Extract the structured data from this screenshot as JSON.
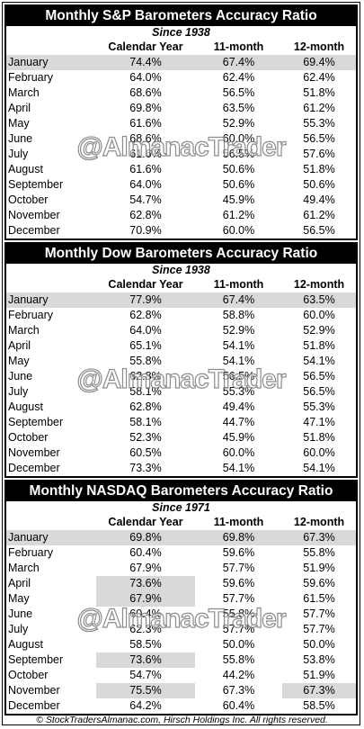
{
  "watermark": "@AlmanacTrader",
  "headers": {
    "month": "",
    "calendar_year": "Calendar Year",
    "eleven_month": "11-month",
    "twelve_month": "12-month"
  },
  "tables": [
    {
      "title": "Monthly S&P Barometers Accuracy Ratio",
      "subtitle": "Since 1938",
      "rows": [
        {
          "month": "January",
          "cal": "74.4%",
          "m11": "67.4%",
          "m12": "69.4%"
        },
        {
          "month": "February",
          "cal": "64.0%",
          "m11": "62.4%",
          "m12": "62.4%"
        },
        {
          "month": "March",
          "cal": "68.6%",
          "m11": "56.5%",
          "m12": "51.8%"
        },
        {
          "month": "April",
          "cal": "69.8%",
          "m11": "63.5%",
          "m12": "61.2%"
        },
        {
          "month": "May",
          "cal": "61.6%",
          "m11": "52.9%",
          "m12": "55.3%"
        },
        {
          "month": "June",
          "cal": "68.6%",
          "m11": "60.0%",
          "m12": "56.5%"
        },
        {
          "month": "July",
          "cal": "61.6%",
          "m11": "56.5%",
          "m12": "57.6%"
        },
        {
          "month": "August",
          "cal": "61.6%",
          "m11": "50.6%",
          "m12": "51.8%"
        },
        {
          "month": "September",
          "cal": "64.0%",
          "m11": "50.6%",
          "m12": "50.6%"
        },
        {
          "month": "October",
          "cal": "54.7%",
          "m11": "45.9%",
          "m12": "49.4%"
        },
        {
          "month": "November",
          "cal": "62.8%",
          "m11": "61.2%",
          "m12": "61.2%"
        },
        {
          "month": "December",
          "cal": "70.9%",
          "m11": "60.0%",
          "m12": "56.5%"
        }
      ]
    },
    {
      "title": "Monthly Dow Barometers Accuracy Ratio",
      "subtitle": "Since 1938",
      "rows": [
        {
          "month": "January",
          "cal": "77.9%",
          "m11": "67.4%",
          "m12": "63.5%"
        },
        {
          "month": "February",
          "cal": "62.8%",
          "m11": "58.8%",
          "m12": "60.0%"
        },
        {
          "month": "March",
          "cal": "64.0%",
          "m11": "52.9%",
          "m12": "52.9%"
        },
        {
          "month": "April",
          "cal": "65.1%",
          "m11": "54.1%",
          "m12": "51.8%"
        },
        {
          "month": "May",
          "cal": "55.8%",
          "m11": "54.1%",
          "m12": "54.1%"
        },
        {
          "month": "June",
          "cal": "62.8%",
          "m11": "56.5%",
          "m12": "56.5%"
        },
        {
          "month": "July",
          "cal": "58.1%",
          "m11": "55.3%",
          "m12": "56.5%"
        },
        {
          "month": "August",
          "cal": "62.8%",
          "m11": "49.4%",
          "m12": "55.3%"
        },
        {
          "month": "September",
          "cal": "58.1%",
          "m11": "44.7%",
          "m12": "47.1%"
        },
        {
          "month": "October",
          "cal": "52.3%",
          "m11": "45.9%",
          "m12": "51.8%"
        },
        {
          "month": "November",
          "cal": "60.5%",
          "m11": "60.0%",
          "m12": "60.0%"
        },
        {
          "month": "December",
          "cal": "73.3%",
          "m11": "54.1%",
          "m12": "54.1%"
        }
      ]
    },
    {
      "title": "Monthly NASDAQ Barometers Accuracy Ratio",
      "subtitle": "Since 1971",
      "rows": [
        {
          "month": "January",
          "cal": "69.8%",
          "m11": "69.8%",
          "m12": "67.3%"
        },
        {
          "month": "February",
          "cal": "60.4%",
          "m11": "59.6%",
          "m12": "55.8%"
        },
        {
          "month": "March",
          "cal": "67.9%",
          "m11": "57.7%",
          "m12": "51.9%"
        },
        {
          "month": "April",
          "cal": "73.6%",
          "m11": "59.6%",
          "m12": "59.6%"
        },
        {
          "month": "May",
          "cal": "67.9%",
          "m11": "57.7%",
          "m12": "61.5%"
        },
        {
          "month": "June",
          "cal": "60.4%",
          "m11": "55.8%",
          "m12": "57.7%"
        },
        {
          "month": "July",
          "cal": "62.3%",
          "m11": "57.7%",
          "m12": "57.7%"
        },
        {
          "month": "August",
          "cal": "58.5%",
          "m11": "50.0%",
          "m12": "50.0%"
        },
        {
          "month": "September",
          "cal": "73.6%",
          "m11": "55.8%",
          "m12": "53.8%"
        },
        {
          "month": "October",
          "cal": "54.7%",
          "m11": "44.2%",
          "m12": "51.9%"
        },
        {
          "month": "November",
          "cal": "75.5%",
          "m11": "67.3%",
          "m12": "67.3%"
        },
        {
          "month": "December",
          "cal": "64.2%",
          "m11": "60.4%",
          "m12": "58.5%"
        }
      ]
    }
  ],
  "footer": "© StockTradersAlmanac.com, Hirsch Holdings Inc. All rights reserved."
}
